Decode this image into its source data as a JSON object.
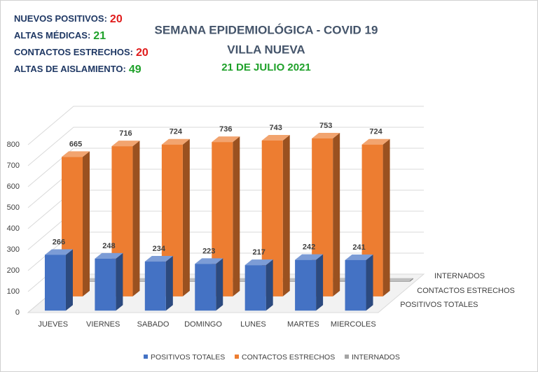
{
  "chart_data": {
    "type": "bar3d",
    "title": "SEMANA EPIDEMIOLÓGICA - COVID 19",
    "subtitle_1": "VILLA NUEVA",
    "subtitle_2": "21 DE JULIO 2021",
    "annotations": [
      {
        "label": "NUEVOS POSITIVOS:",
        "value": 20,
        "color": "#e01b1b"
      },
      {
        "label": "ALTAS MÉDICAS:",
        "value": 21,
        "color": "#1fa12a"
      },
      {
        "label": "CONTACTOS ESTRECHOS:",
        "value": 20,
        "color": "#e01b1b"
      },
      {
        "label": "ALTAS DE AISLAMIENTO:",
        "value": 49,
        "color": "#1fa12a"
      }
    ],
    "categories": [
      "JUEVES",
      "VIERNES",
      "SABADO",
      "DOMINGO",
      "LUNES",
      "MARTES",
      "MIERCOLES"
    ],
    "series": [
      {
        "name": "POSITIVOS TOTALES",
        "color": "#4472c4",
        "values": [
          266,
          248,
          234,
          223,
          217,
          242,
          241
        ]
      },
      {
        "name": "CONTACTOS ESTRECHOS",
        "color": "#ed7d31",
        "values": [
          665,
          716,
          724,
          736,
          743,
          753,
          724
        ]
      },
      {
        "name": "INTERNADOS",
        "color": "#a5a5a5",
        "values": [
          4,
          4,
          4,
          4,
          4,
          5,
          4
        ]
      }
    ],
    "ylim": [
      0,
      800
    ],
    "yticks": [
      0,
      100,
      200,
      300,
      400,
      500,
      600,
      700,
      800
    ],
    "grid": true
  }
}
